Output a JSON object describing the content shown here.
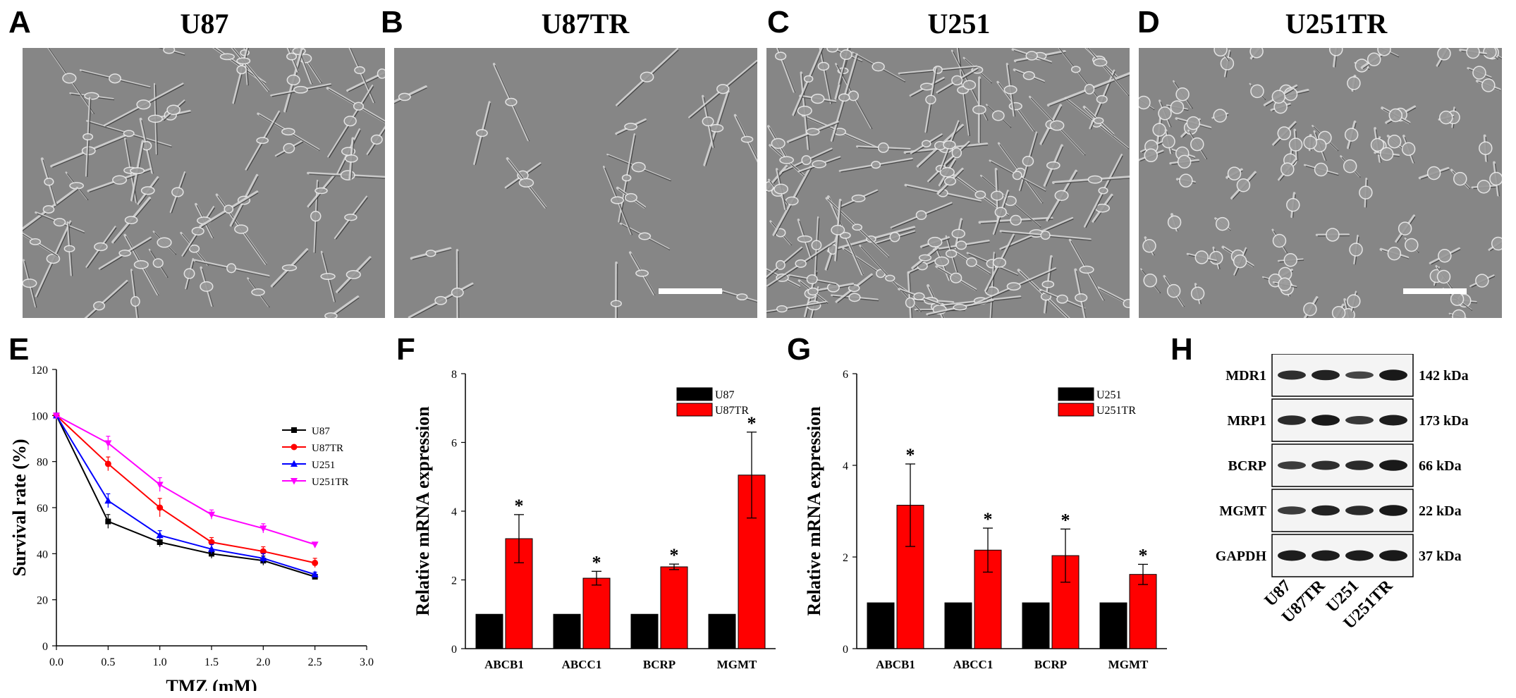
{
  "panels": {
    "A": {
      "letter": "A",
      "title": "U87"
    },
    "B": {
      "letter": "B",
      "title": "U87TR"
    },
    "C": {
      "letter": "C",
      "title": "U251"
    },
    "D": {
      "letter": "D",
      "title": "U251TR"
    },
    "E": {
      "letter": "E"
    },
    "F": {
      "letter": "F"
    },
    "G": {
      "letter": "G"
    },
    "H": {
      "letter": "H"
    }
  },
  "colors": {
    "black": "#000000",
    "red": "#ff0000",
    "blue": "#0000ff",
    "magenta": "#ff00ff",
    "micrograph_bg": "#8a8a8a"
  },
  "chart_data": [
    {
      "panel": "E",
      "type": "line",
      "xlabel": "TMZ (mM)",
      "ylabel": "Survival rate (%)",
      "xlim": [
        0,
        3.0
      ],
      "ylim": [
        0,
        120
      ],
      "xticks": [
        "0.0",
        "0.5",
        "1.0",
        "1.5",
        "2.0",
        "2.5",
        "3.0"
      ],
      "yticks": [
        "0",
        "20",
        "40",
        "60",
        "80",
        "100",
        "120"
      ],
      "legend": "top-right",
      "x": [
        0.0,
        0.5,
        1.0,
        1.5,
        2.0,
        2.5
      ],
      "series": [
        {
          "name": "U87",
          "color": "#000000",
          "marker": "square",
          "values": [
            100,
            54,
            45,
            40,
            37,
            30
          ],
          "errors": [
            1,
            3,
            2,
            2,
            2,
            1
          ]
        },
        {
          "name": "U87TR",
          "color": "#ff0000",
          "marker": "circle",
          "values": [
            100,
            79,
            60,
            45,
            41,
            36
          ],
          "errors": [
            1,
            3,
            4,
            2,
            2,
            2
          ]
        },
        {
          "name": "U251",
          "color": "#0000ff",
          "marker": "triangle",
          "values": [
            100,
            63,
            48,
            42,
            38,
            31
          ],
          "errors": [
            1,
            3,
            2,
            2,
            2,
            1
          ]
        },
        {
          "name": "U251TR",
          "color": "#ff00ff",
          "marker": "triangle-down",
          "values": [
            100,
            88,
            70,
            57,
            51,
            44
          ],
          "errors": [
            1,
            3,
            3,
            2,
            2,
            1
          ]
        }
      ]
    },
    {
      "panel": "F",
      "type": "bar",
      "ylabel": "Relative mRNA expression",
      "ylim": [
        0,
        8
      ],
      "yticks": [
        "0",
        "2",
        "4",
        "6",
        "8"
      ],
      "legend": "top-right",
      "categories": [
        "ABCB1",
        "ABCC1",
        "BCRP",
        "MGMT"
      ],
      "series": [
        {
          "name": "U87",
          "color": "#000000",
          "values": [
            1,
            1,
            1,
            1
          ],
          "errors": [
            0,
            0,
            0,
            0
          ]
        },
        {
          "name": "U87TR",
          "color": "#ff0000",
          "values": [
            3.2,
            2.05,
            2.38,
            5.05
          ],
          "errors": [
            0.7,
            0.2,
            0.08,
            1.25
          ],
          "significance": [
            "*",
            "*",
            "*",
            "*"
          ]
        }
      ]
    },
    {
      "panel": "G",
      "type": "bar",
      "ylabel": "Relative mRNA expression",
      "ylim": [
        0,
        6
      ],
      "yticks": [
        "0",
        "2",
        "4",
        "6"
      ],
      "legend": "top-right",
      "categories": [
        "ABCB1",
        "ABCC1",
        "BCRP",
        "MGMT"
      ],
      "series": [
        {
          "name": "U251",
          "color": "#000000",
          "values": [
            1,
            1,
            1,
            1
          ],
          "errors": [
            0,
            0,
            0,
            0
          ]
        },
        {
          "name": "U251TR",
          "color": "#ff0000",
          "values": [
            3.13,
            2.15,
            2.03,
            1.62
          ],
          "errors": [
            0.9,
            0.48,
            0.58,
            0.22
          ],
          "significance": [
            "*",
            "*",
            "*",
            "*"
          ]
        }
      ]
    }
  ],
  "western_blot": {
    "rows": [
      {
        "protein": "MDR1",
        "size": "142 kDa",
        "intensity": [
          0.7,
          0.85,
          0.45,
          0.95
        ]
      },
      {
        "protein": "MRP1",
        "size": "173 kDa",
        "intensity": [
          0.75,
          0.95,
          0.6,
          0.9
        ]
      },
      {
        "protein": "BCRP",
        "size": "66 kDa",
        "intensity": [
          0.55,
          0.7,
          0.75,
          0.95
        ]
      },
      {
        "protein": "MGMT",
        "size": "22 kDa",
        "intensity": [
          0.55,
          0.85,
          0.75,
          0.95
        ]
      },
      {
        "protein": "GAPDH",
        "size": "37 kDa",
        "intensity": [
          0.9,
          0.9,
          0.9,
          0.95
        ]
      }
    ],
    "lanes": [
      "U87",
      "U87TR",
      "U251",
      "U251TR"
    ]
  }
}
